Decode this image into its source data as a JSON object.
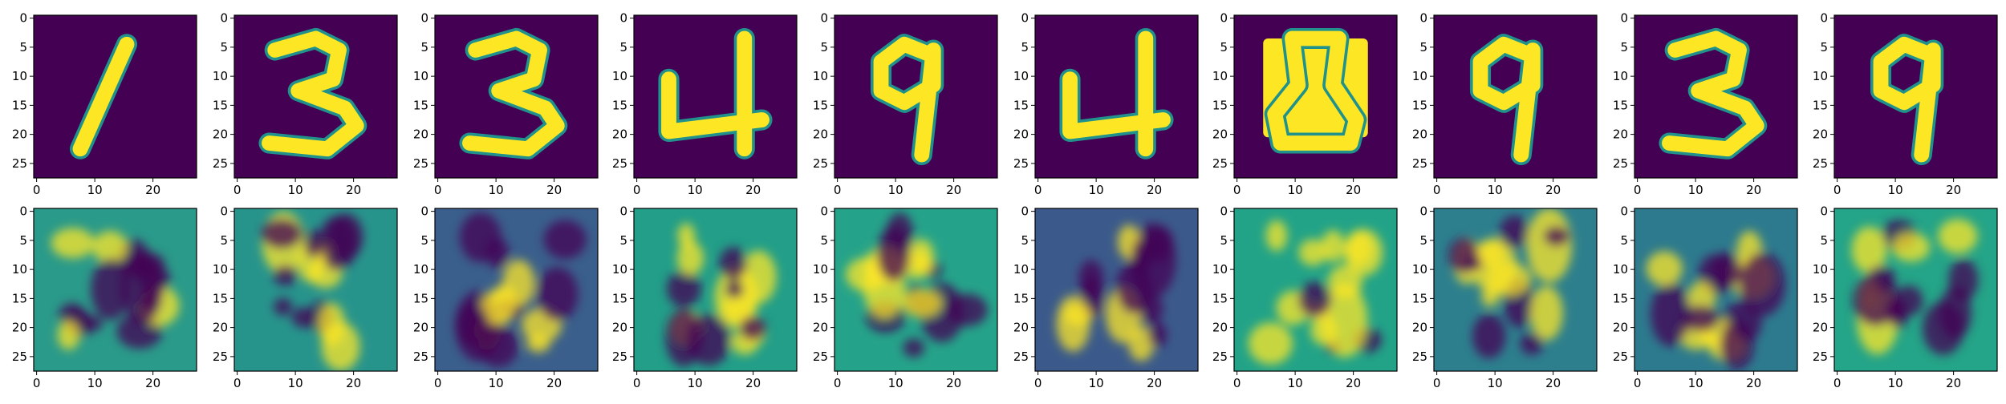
{
  "chart_data": {
    "type": "heatmap",
    "description_rows": [
      "input digits",
      "reconstructions"
    ],
    "colormap": "viridis",
    "image_size": [
      28,
      28
    ],
    "x_ticks": [
      0,
      10,
      20
    ],
    "y_ticks": [
      0,
      5,
      10,
      15,
      20,
      25
    ],
    "panels": [
      {
        "row": 0,
        "col": 0,
        "digit": "1"
      },
      {
        "row": 0,
        "col": 1,
        "digit": "3"
      },
      {
        "row": 0,
        "col": 2,
        "digit": "3"
      },
      {
        "row": 0,
        "col": 3,
        "digit": "4"
      },
      {
        "row": 0,
        "col": 4,
        "digit": "9"
      },
      {
        "row": 0,
        "col": 5,
        "digit": "4"
      },
      {
        "row": 0,
        "col": 6,
        "digit": "8"
      },
      {
        "row": 0,
        "col": 7,
        "digit": "9"
      },
      {
        "row": 0,
        "col": 8,
        "digit": "3"
      },
      {
        "row": 0,
        "col": 9,
        "digit": "9"
      },
      {
        "row": 1,
        "col": 0,
        "background": "#2a9a8a"
      },
      {
        "row": 1,
        "col": 1,
        "background": "#27948c"
      },
      {
        "row": 1,
        "col": 2,
        "background": "#3a5f8c"
      },
      {
        "row": 1,
        "col": 3,
        "background": "#229e89"
      },
      {
        "row": 1,
        "col": 4,
        "background": "#25a38a"
      },
      {
        "row": 1,
        "col": 5,
        "background": "#3b5a8b"
      },
      {
        "row": 1,
        "col": 6,
        "background": "#22a388"
      },
      {
        "row": 1,
        "col": 7,
        "background": "#2d7f8e"
      },
      {
        "row": 1,
        "col": 8,
        "background": "#2d7a8e"
      },
      {
        "row": 1,
        "col": 9,
        "background": "#24a488"
      }
    ],
    "grid": false
  },
  "colors": {
    "dark": "#440154",
    "bright": "#fde725",
    "mid": "#21918c"
  }
}
